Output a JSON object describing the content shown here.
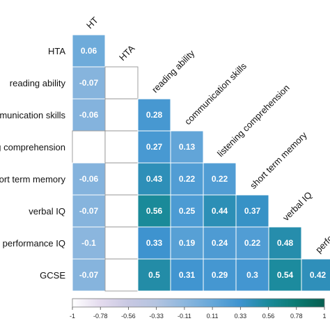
{
  "chart_data": {
    "type": "heatmap",
    "layout": "lower-triangle correlation matrix",
    "row_labels": [
      "HTA",
      "reading ability",
      "communication skills",
      "listening comprehension",
      "short term memory",
      "verbal IQ",
      "performance IQ",
      "GCSE"
    ],
    "col_labels": [
      "HT",
      "HTA",
      "reading ability",
      "communication skills",
      "listening comprehension",
      "short term memory",
      "verbal IQ",
      "performance IQ"
    ],
    "matrix": [
      [
        0.06,
        null,
        null,
        null,
        null,
        null,
        null,
        null
      ],
      [
        -0.07,
        null,
        null,
        null,
        null,
        null,
        null,
        null
      ],
      [
        -0.06,
        null,
        0.28,
        null,
        null,
        null,
        null,
        null
      ],
      [
        null,
        null,
        0.27,
        0.13,
        null,
        null,
        null,
        null
      ],
      [
        -0.06,
        null,
        0.43,
        0.22,
        0.22,
        null,
        null,
        null
      ],
      [
        -0.07,
        null,
        0.56,
        0.25,
        0.44,
        0.37,
        null,
        null
      ],
      [
        -0.1,
        null,
        0.33,
        0.19,
        0.24,
        0.22,
        0.48,
        null
      ],
      [
        -0.07,
        null,
        0.5,
        0.31,
        0.29,
        0.3,
        0.54,
        0.42
      ]
    ],
    "colorbar": {
      "ticks": [
        "-1",
        "-0.78",
        "-0.56",
        "-0.33",
        "-0.11",
        "0.11",
        "0.33",
        "0.56",
        "0.78",
        "1"
      ],
      "range": [
        -1,
        1
      ],
      "colors": [
        "#ffffff",
        "#e4dbee",
        "#c8c8e2",
        "#b4c4e0",
        "#8db7de",
        "#65a7d9",
        "#3d93cf",
        "#1a8a9a",
        "#0a7a72",
        "#075e50"
      ]
    },
    "legend_position": "bottom"
  }
}
